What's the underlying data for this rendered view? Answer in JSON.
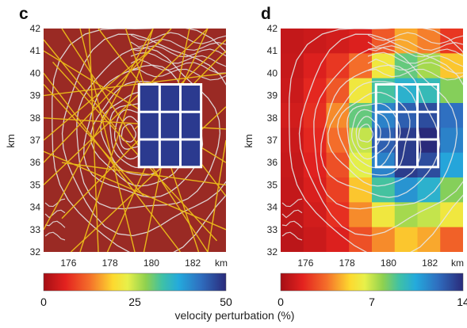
{
  "chart_data": [
    {
      "type": "heatmap",
      "panel_label": "c",
      "xlabel": "km",
      "ylabel": "km",
      "x_ticks": [
        176,
        178,
        180,
        182
      ],
      "y_ticks": [
        32,
        33,
        34,
        35,
        36,
        37,
        38,
        39,
        40,
        41,
        42
      ],
      "xlim": [
        174.8,
        183.6
      ],
      "ylim": [
        32,
        42
      ],
      "background_value": 0,
      "anomaly_box": {
        "x": [
          179.4,
          182.4
        ],
        "y": [
          35.8,
          39.5
        ],
        "value": 50
      },
      "colorbar": {
        "min": 0,
        "max": 50,
        "ticks": [
          "0",
          "25",
          "50"
        ]
      },
      "colors": {
        "background": "#9a2a24",
        "anomaly": "#2b3a8f",
        "rays": "#e8b81a",
        "contours": "#e6e6e6"
      }
    },
    {
      "type": "heatmap",
      "panel_label": "d",
      "xlabel": "km",
      "ylabel": "km",
      "x_ticks": [
        176,
        178,
        180,
        182
      ],
      "y_ticks": [
        32,
        33,
        34,
        35,
        36,
        37,
        38,
        39,
        40,
        41,
        42
      ],
      "xlim": [
        174.8,
        183.6
      ],
      "ylim": [
        32,
        42
      ],
      "grid_columns": 8,
      "grid_rows": 9,
      "values": [
        [
          0.8,
          1.0,
          1.2,
          1.5,
          3.0,
          4.5,
          3.8,
          2.2
        ],
        [
          0.9,
          1.5,
          2.2,
          3.5,
          6.0,
          8.5,
          7.5,
          5.0
        ],
        [
          1.0,
          1.8,
          3.0,
          6.0,
          9.0,
          10.0,
          9.5,
          8.0
        ],
        [
          1.2,
          2.0,
          4.0,
          8.5,
          11.5,
          12.5,
          13.0,
          12.0
        ],
        [
          1.0,
          1.8,
          3.5,
          7.0,
          12.5,
          13.5,
          14.0,
          11.5
        ],
        [
          0.9,
          1.6,
          2.8,
          6.5,
          11.5,
          13.5,
          13.0,
          10.5
        ],
        [
          0.8,
          1.4,
          2.4,
          5.0,
          9.0,
          11.0,
          10.0,
          8.0
        ],
        [
          0.7,
          1.2,
          2.0,
          4.0,
          6.0,
          7.5,
          7.0,
          6.0
        ],
        [
          0.6,
          1.0,
          1.5,
          2.8,
          4.0,
          5.0,
          4.5,
          3.2
        ]
      ],
      "anomaly_box": {
        "x": [
          179.4,
          182.4
        ],
        "y": [
          35.8,
          39.5
        ]
      },
      "colorbar": {
        "min": 0,
        "max": 14,
        "ticks": [
          "0",
          "7",
          "14"
        ]
      },
      "colors": {
        "contours": "#e6e6e6"
      }
    }
  ],
  "x_unit_label": "km",
  "shared_xlabel": "velocity perturbation (%)"
}
